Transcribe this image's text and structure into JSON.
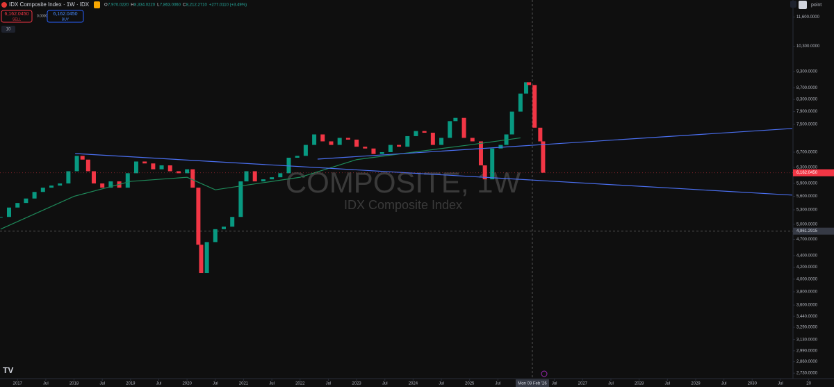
{
  "header": {
    "symbol": "IDX Composite Index · 1W · IDX",
    "ohlc": [
      "O",
      "7,970.0220",
      "H",
      "8,334.0220",
      "L",
      "7,863.0060",
      "C",
      "8,212.2710",
      "+277.0110 (+3.49%)"
    ],
    "sell": {
      "price": "6,162.0450",
      "label": "SELL"
    },
    "spread": "0.0000",
    "buy": {
      "price": "6,162.0450",
      "label": "BUY"
    },
    "indicators": "10",
    "scale_mode": "point"
  },
  "chart_data": {
    "type": "candlestick",
    "watermark": "COMPOSITE, 1W",
    "watermark_sub": "IDX Composite Index",
    "log_scale": true,
    "up_color": "#089981",
    "down_color": "#f23645",
    "xlim": [
      2016.69,
      2030.71
    ],
    "ylim": [
      2670,
      12430
    ],
    "yticks": [
      {
        "value": 11600,
        "label": "11,600.0000"
      },
      {
        "value": 10300,
        "label": "10,300.0000"
      },
      {
        "value": 9300,
        "label": "9,300.0000"
      },
      {
        "value": 8700,
        "label": "8,700.0000"
      },
      {
        "value": 8300,
        "label": "8,300.0000"
      },
      {
        "value": 7900,
        "label": "7,900.0000"
      },
      {
        "value": 7500,
        "label": "7,500.0000"
      },
      {
        "value": 6700,
        "label": "6,700.0000"
      },
      {
        "value": 6300,
        "label": "6,300.0000"
      },
      {
        "value": 5900,
        "label": "5,900.0000"
      },
      {
        "value": 5600,
        "label": "5,600.0000"
      },
      {
        "value": 5300,
        "label": "5,300.0000"
      },
      {
        "value": 5000,
        "label": "5,000.0000"
      },
      {
        "value": 4700,
        "label": "4,700.0000"
      },
      {
        "value": 4400,
        "label": "4,400.0000"
      },
      {
        "value": 4200,
        "label": "4,200.0000"
      },
      {
        "value": 4000,
        "label": "4,000.0000"
      },
      {
        "value": 3800,
        "label": "3,800.0000"
      },
      {
        "value": 3600,
        "label": "3,600.0000"
      },
      {
        "value": 3440,
        "label": "3,440.0000"
      },
      {
        "value": 3290,
        "label": "3,290.0000"
      },
      {
        "value": 3130,
        "label": "3,130.0000"
      },
      {
        "value": 2990,
        "label": "2,990.0000"
      },
      {
        "value": 2860,
        "label": "2,860.0000"
      },
      {
        "value": 2730,
        "label": "2,730.0000"
      }
    ],
    "xticks": [
      2017,
      {
        "value": 2017.5,
        "label": "Jul"
      },
      2018,
      {
        "value": 2018.5,
        "label": "Jul"
      },
      2019,
      {
        "value": 2019.5,
        "label": "Jul"
      },
      2020,
      {
        "value": 2020.5,
        "label": "Jul"
      },
      2021,
      {
        "value": 2021.5,
        "label": "Jul"
      },
      2022,
      {
        "value": 2022.5,
        "label": "Jul"
      },
      2023,
      {
        "value": 2023.5,
        "label": "Jul"
      },
      2024,
      {
        "value": 2024.5,
        "label": "Jul"
      },
      2025,
      {
        "value": 2025.5,
        "label": "Jul"
      },
      {
        "value": 2026.5,
        "label": "Jul"
      },
      2027,
      {
        "value": 2027.5,
        "label": "Jul"
      },
      2028,
      {
        "value": 2028.5,
        "label": "Jul"
      },
      2029,
      {
        "value": 2029.5,
        "label": "Jul"
      },
      2030,
      {
        "value": 2030.5,
        "label": "Jul"
      },
      {
        "value": 2031,
        "label": "20"
      }
    ],
    "crosshair": {
      "x": {
        "value": 2026.11,
        "label": "Mon 09 Feb '26"
      },
      "y": {
        "value": 4861.2915,
        "label": "4,861.2915"
      }
    },
    "last_price": {
      "value": 6162.045,
      "label": "6,162.0450"
    },
    "series": [
      {
        "style": "candle",
        "x": [
          2016.7,
          2016.85,
          2017.0,
          2017.15,
          2017.3,
          2017.45,
          2017.6,
          2017.75,
          2017.9,
          2018.05,
          2018.15,
          2018.25,
          2018.35,
          2018.5,
          2018.65,
          2018.8,
          2018.95,
          2019.1,
          2019.25,
          2019.4,
          2019.55,
          2019.7,
          2019.85,
          2020.0,
          2020.1,
          2020.2,
          2020.25,
          2020.35,
          2020.5,
          2020.65,
          2020.8,
          2020.95,
          2021.05,
          2021.2,
          2021.35,
          2021.5,
          2021.65,
          2021.8,
          2021.95,
          2022.1,
          2022.25,
          2022.4,
          2022.55,
          2022.7,
          2022.85,
          2023.0,
          2023.15,
          2023.3,
          2023.45,
          2023.6,
          2023.75,
          2023.9,
          2024.05,
          2024.2,
          2024.35,
          2024.5,
          2024.65,
          2024.75,
          2024.9,
          2025.05,
          2025.2,
          2025.27,
          2025.4,
          2025.55,
          2025.65,
          2025.75,
          2025.9,
          2026.0,
          2026.05,
          2026.15,
          2026.25,
          2026.3
        ],
        "values": [
          5150,
          5350,
          5450,
          5550,
          5700,
          5800,
          5850,
          5900,
          6200,
          6600,
          6500,
          6200,
          5900,
          5800,
          5950,
          5800,
          6150,
          6450,
          6400,
          6250,
          6350,
          6200,
          6150,
          6250,
          5800,
          4600,
          4100,
          4650,
          4900,
          4950,
          5150,
          5950,
          6200,
          5950,
          6000,
          6050,
          6150,
          6550,
          6600,
          6900,
          7200,
          7000,
          6900,
          7100,
          7050,
          6850,
          6800,
          6650,
          6700,
          6900,
          6850,
          7150,
          7300,
          7250,
          6900,
          7100,
          7600,
          7700,
          7100,
          7000,
          6350,
          6000,
          6800,
          6900,
          7200,
          7900,
          8500,
          8900,
          8800,
          7400,
          7000,
          6162.045
        ]
      },
      {
        "style": "line",
        "color": "#1e8a5a",
        "x": [
          2016.7,
          2018,
          2019,
          2020,
          2020.5,
          2021,
          2022,
          2023,
          2024,
          2025,
          2025.9
        ],
        "values": [
          4900,
          5600,
          5950,
          6050,
          5750,
          5850,
          6050,
          6500,
          6700,
          6900,
          7100
        ]
      },
      {
        "style": "line",
        "color": "#4a6ff0",
        "x": [
          2018.02,
          2030.71
        ],
        "values": [
          6662,
          5627
        ]
      },
      {
        "style": "line",
        "color": "#4a6ff0",
        "x": [
          2022.31,
          2030.71
        ],
        "values": [
          6514,
          7376
        ]
      }
    ]
  }
}
